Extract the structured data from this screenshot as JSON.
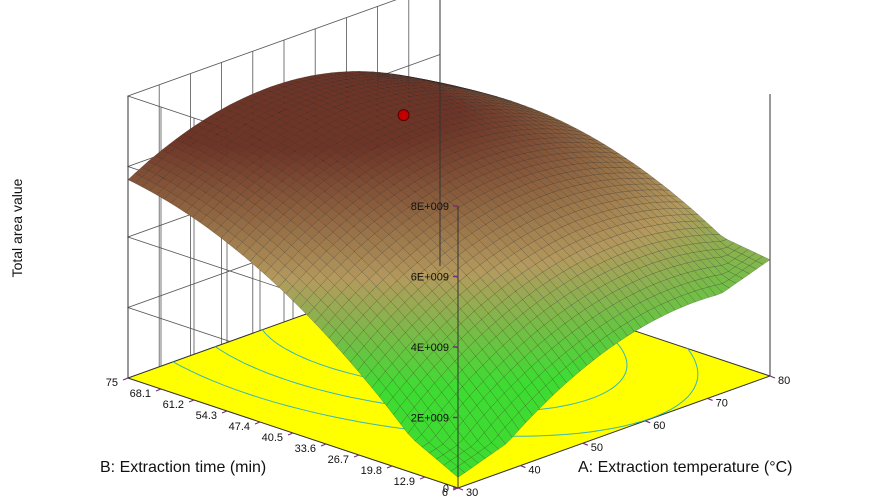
{
  "chart_data": {
    "type": "surface3d",
    "zlabel": "Total area value",
    "xlabel": "A: Extraction temperature (°C)",
    "ylabel": "B: Extraction time  (min)",
    "z_ticks": [
      "8E+009",
      "6E+009",
      "4E+009",
      "2E+009",
      "0"
    ],
    "x_ticks": [
      "30",
      "40",
      "50",
      "60",
      "70",
      "80"
    ],
    "y_ticks": [
      "6",
      "12.9",
      "19.8",
      "26.7",
      "33.6",
      "40.5",
      "47.4",
      "54.3",
      "61.2",
      "68.1",
      "75"
    ],
    "x_range": [
      30,
      80
    ],
    "y_range": [
      6,
      75
    ],
    "z_range": [
      0,
      8000000000
    ],
    "surface_corners": [
      {
        "temperature": 30,
        "time": 6,
        "value": 300000000
      },
      {
        "temperature": 30,
        "time": 75,
        "value": 5100000000
      },
      {
        "temperature": 80,
        "time": 6,
        "value": 3300000000
      },
      {
        "temperature": 80,
        "time": 75,
        "value": 4600000000
      }
    ],
    "surface_peak": {
      "temperature": 55,
      "time": 50,
      "value": 6300000000
    },
    "design_point": {
      "temperature": 55,
      "time": 50,
      "value": 7000000000
    },
    "grid": true,
    "colors": {
      "floor": "#ffff00",
      "low": "#3edc33",
      "mid": "#b49a5e",
      "high": "#6e3426",
      "contour": "#3ab7b0",
      "point": "#c00000"
    }
  }
}
